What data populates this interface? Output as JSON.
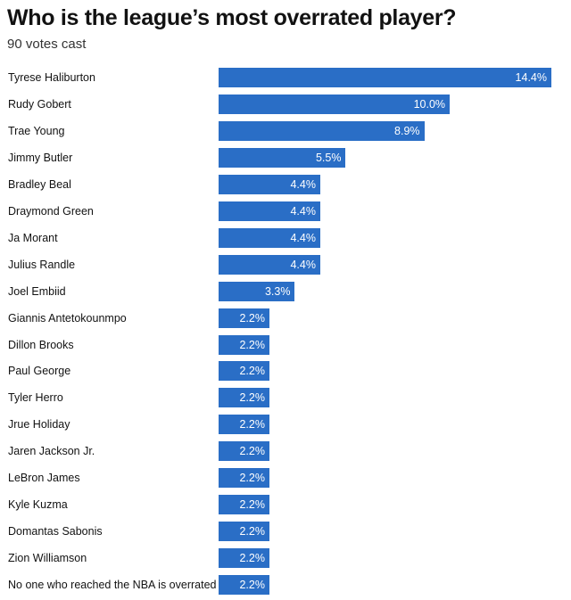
{
  "chart_data": {
    "type": "bar",
    "orientation": "horizontal",
    "title": "Who is the league’s most overrated player?",
    "subtitle": "90 votes cast",
    "categories": [
      "Tyrese Haliburton",
      "Rudy Gobert",
      "Trae Young",
      "Jimmy Butler",
      "Bradley Beal",
      "Draymond Green",
      "Ja Morant",
      "Julius Randle",
      "Joel Embiid",
      "Giannis Antetokounmpo",
      "Dillon Brooks",
      "Paul George",
      "Tyler Herro",
      "Jrue Holiday",
      "Jaren Jackson Jr.",
      "LeBron James",
      "Kyle Kuzma",
      "Domantas Sabonis",
      "Zion Williamson",
      "No one who reached the NBA is overrated"
    ],
    "values": [
      14.4,
      10.0,
      8.9,
      5.5,
      4.4,
      4.4,
      4.4,
      4.4,
      3.3,
      2.2,
      2.2,
      2.2,
      2.2,
      2.2,
      2.2,
      2.2,
      2.2,
      2.2,
      2.2,
      2.2
    ],
    "value_labels": [
      "14.4%",
      "10.0%",
      "8.9%",
      "5.5%",
      "4.4%",
      "4.4%",
      "4.4%",
      "4.4%",
      "3.3%",
      "2.2%",
      "2.2%",
      "2.2%",
      "2.2%",
      "2.2%",
      "2.2%",
      "2.2%",
      "2.2%",
      "2.2%",
      "2.2%",
      "2.2%"
    ],
    "bar_color": "#2a6ec6",
    "grid": false
  }
}
